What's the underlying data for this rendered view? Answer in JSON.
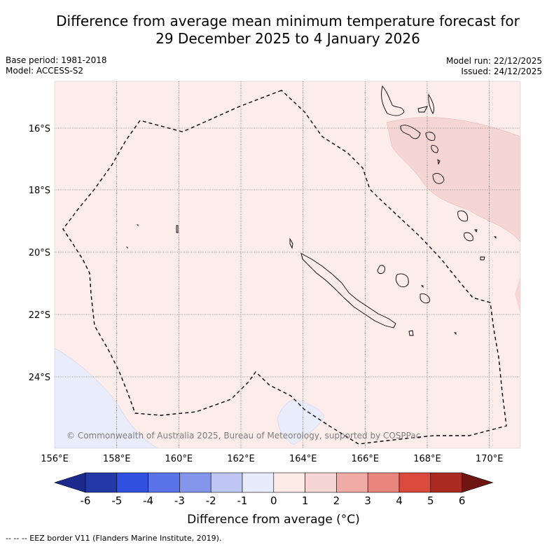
{
  "title": {
    "line1": "Difference from average mean minimum temperature forecast for",
    "line2": "29 December 2025 to 4 January 2026"
  },
  "meta": {
    "base_period": "Base period: 1981-2018",
    "model": "Model: ACCESS-S2",
    "model_run": "Model run: 22/12/2025",
    "issued": "Issued: 24/12/2025"
  },
  "map": {
    "lon_ticks": [
      "156°E",
      "158°E",
      "160°E",
      "162°E",
      "164°E",
      "166°E",
      "168°E",
      "170°E"
    ],
    "lat_ticks": [
      "16°S",
      "18°S",
      "20°S",
      "22°S",
      "24°S"
    ],
    "copyright": "© Commonwealth of Australia 2025, Bureau of Meteorology, supported by COSPPac",
    "colors": {
      "background": "#fcecea",
      "warm_patch": "#f6d6d4",
      "cool_patch": "#e8ecfb",
      "eez_line": "#000000"
    }
  },
  "colorbar": {
    "tick_labels": [
      "-6",
      "-5",
      "-4",
      "-3",
      "-2",
      "-1",
      "0",
      "1",
      "2",
      "3",
      "4",
      "5",
      "6"
    ],
    "colors": [
      "#1b2a8c",
      "#2339a8",
      "#3051e0",
      "#5a72e8",
      "#8496ec",
      "#bfc6f4",
      "#e8ebfb",
      "#fdebe8",
      "#f6d6d4",
      "#f0aba6",
      "#e8857d",
      "#dc4a3e",
      "#ab2a22",
      "#6f1612"
    ],
    "label": "Difference from average (°C)"
  },
  "legend": {
    "eez_label": "--  --  -- EEZ border V11 (Flanders Marine Institute, 2019)."
  }
}
